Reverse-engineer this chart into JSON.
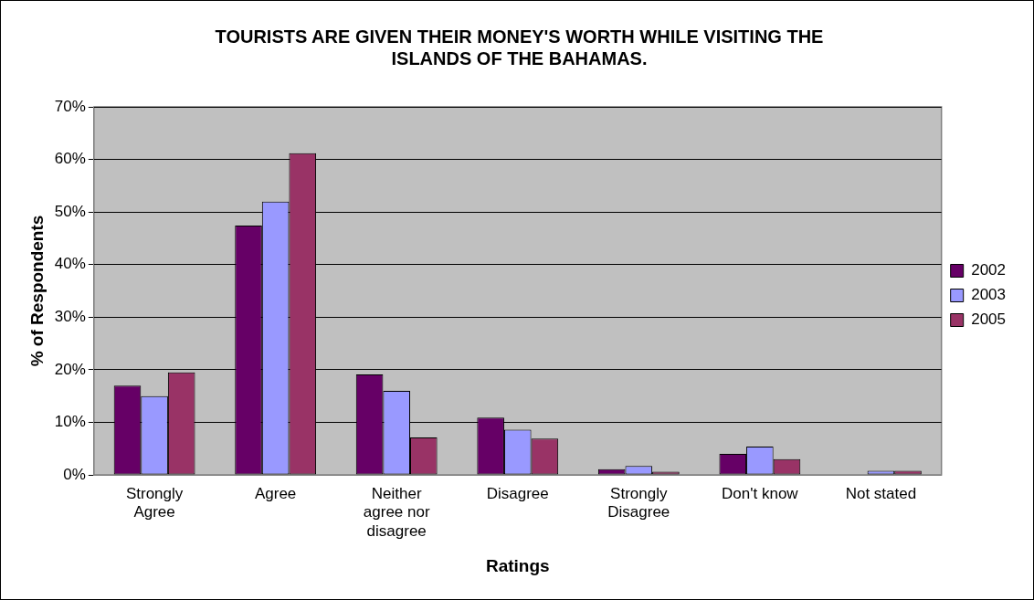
{
  "chart_data": {
    "type": "bar",
    "title": "TOURISTS ARE GIVEN THEIR MONEY'S WORTH WHILE VISITING THE ISLANDS OF THE BAHAMAS.",
    "xlabel": "Ratings",
    "ylabel": "% of Respondents",
    "categories": [
      "Strongly Agree",
      "Agree",
      "Neither agree nor disagree",
      "Disagree",
      "Strongly Disagree",
      "Don't know",
      "Not stated"
    ],
    "series": [
      {
        "name": "2002",
        "color": "#660066",
        "values": [
          17,
          47.4,
          19.1,
          10.9,
          1.1,
          4,
          0
        ]
      },
      {
        "name": "2003",
        "color": "#9999ff",
        "values": [
          15,
          52,
          16,
          8.6,
          1.7,
          5.4,
          0.8
        ]
      },
      {
        "name": "2005",
        "color": "#993366",
        "values": [
          19.5,
          61.2,
          7.1,
          6.9,
          0.6,
          3,
          0.8
        ]
      }
    ],
    "ylim": [
      0,
      70
    ],
    "yticks": [
      {
        "value": 0,
        "label": "0%"
      },
      {
        "value": 10,
        "label": "10%"
      },
      {
        "value": 20,
        "label": "20%"
      },
      {
        "value": 30,
        "label": "30%"
      },
      {
        "value": 40,
        "label": "40%"
      },
      {
        "value": 50,
        "label": "50%"
      },
      {
        "value": 60,
        "label": "60%"
      },
      {
        "value": 70,
        "label": "70%"
      }
    ],
    "grid": "y",
    "legend": "right"
  }
}
